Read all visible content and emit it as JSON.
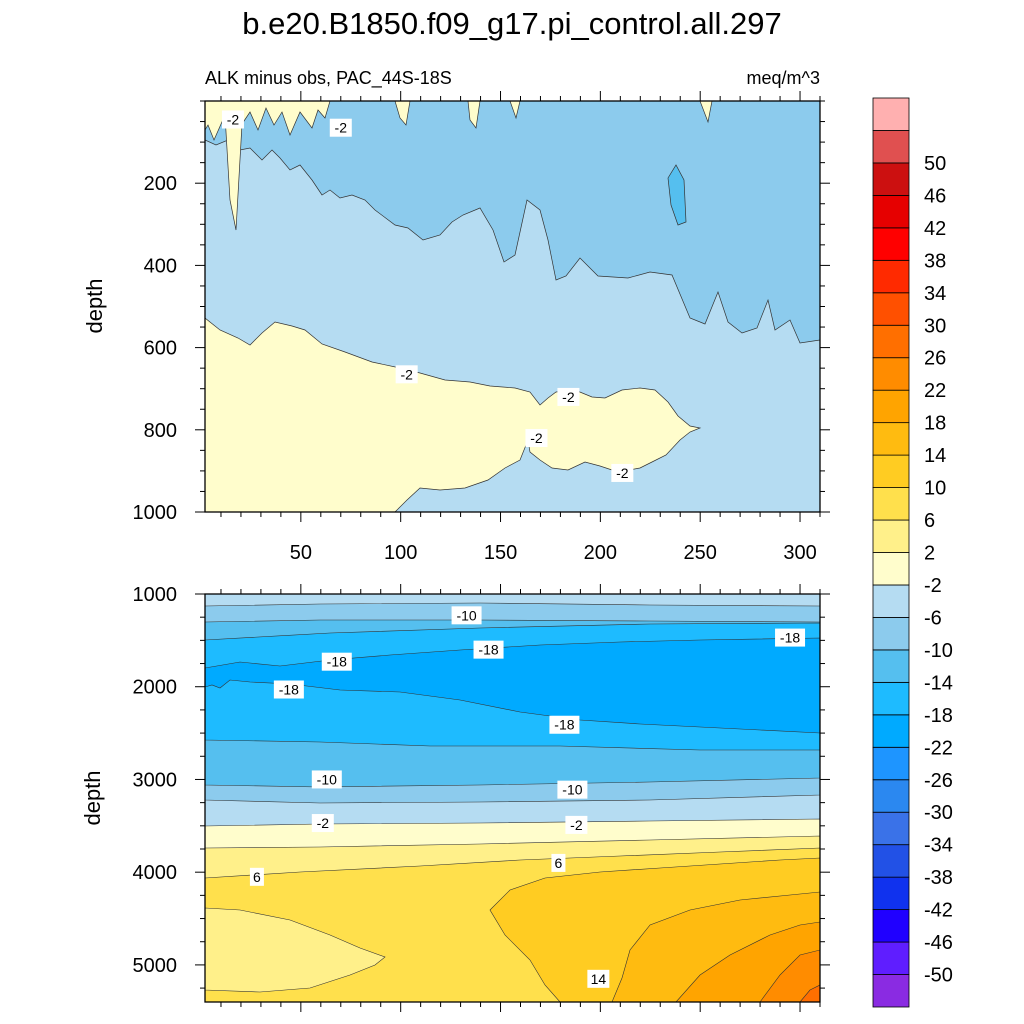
{
  "title": "b.e20.B1850.f09_g17.pi_control.all.297",
  "subtitle_left": "ALK minus obs, PAC_44S-18S",
  "subtitle_right": "meq/m^3",
  "ylabel": "depth",
  "colorbar": {
    "colors": [
      "#8a2be2",
      "#5f1eff",
      "#2000ff",
      "#1032ee",
      "#2251e6",
      "#3a72e8",
      "#2b88f0",
      "#1e95ff",
      "#00aaff",
      "#1ebbff",
      "#55bfef",
      "#8ccbed",
      "#b5dcf2",
      "#fffdcc",
      "#fff08a",
      "#ffe04c",
      "#ffcc22",
      "#ffbb10",
      "#ffa400",
      "#ff8c00",
      "#ff6f00",
      "#ff5000",
      "#ff2a00",
      "#ff0000",
      "#e60000",
      "#cc1010",
      "#e05050",
      "#ffb0b0"
    ],
    "labels": [
      "-50",
      "-46",
      "-42",
      "-38",
      "-34",
      "-30",
      "-26",
      "-22",
      "-18",
      "-14",
      "-10",
      "-6",
      "-2",
      "2",
      "6",
      "10",
      "14",
      "18",
      "22",
      "26",
      "30",
      "34",
      "38",
      "42",
      "46",
      "50"
    ]
  },
  "chart_data": [
    {
      "type": "contour",
      "panel": "upper",
      "variable": "ALK minus obs",
      "units": "meq/m^3",
      "x_ticks": [
        50,
        100,
        150,
        200,
        250,
        300
      ],
      "x_tick_labels": [
        "50",
        "100",
        "150",
        "200",
        "250",
        "300"
      ],
      "xlim": [
        2,
        310
      ],
      "ylim": [
        0,
        1000
      ],
      "y_ticks": [
        200,
        400,
        600,
        800,
        1000
      ],
      "y_tick_labels": [
        "200",
        "400",
        "600",
        "800",
        "1000"
      ],
      "ylabel": "depth",
      "contour_labels": [
        {
          "text": "-2",
          "x": 16,
          "depth": 45
        },
        {
          "text": "-2",
          "x": 70,
          "depth": 65
        },
        {
          "text": "-2",
          "x": 103,
          "depth": 665
        },
        {
          "text": "-2",
          "x": 184,
          "depth": 720
        },
        {
          "text": "-2",
          "x": 168,
          "depth": 820
        },
        {
          "text": "-2",
          "x": 211,
          "depth": 905
        }
      ]
    },
    {
      "type": "contour",
      "panel": "lower",
      "variable": "ALK minus obs",
      "units": "meq/m^3",
      "xlim": [
        2,
        310
      ],
      "ylim": [
        1000,
        5400
      ],
      "y_ticks": [
        1000,
        2000,
        3000,
        4000,
        5000
      ],
      "y_tick_labels": [
        "1000",
        "2000",
        "3000",
        "4000",
        "5000"
      ],
      "ylabel": "depth",
      "contour_labels": [
        {
          "text": "-10",
          "x": 133,
          "depth": 1230
        },
        {
          "text": "-18",
          "x": 295,
          "depth": 1470
        },
        {
          "text": "-18",
          "x": 144,
          "depth": 1600
        },
        {
          "text": "-18",
          "x": 68,
          "depth": 1730
        },
        {
          "text": "-18",
          "x": 44,
          "depth": 2030
        },
        {
          "text": "-18",
          "x": 182,
          "depth": 2410
        },
        {
          "text": "-10",
          "x": 63,
          "depth": 3000
        },
        {
          "text": "-10",
          "x": 186,
          "depth": 3110
        },
        {
          "text": "-2",
          "x": 61,
          "depth": 3470
        },
        {
          "text": "-2",
          "x": 188,
          "depth": 3490
        },
        {
          "text": "6",
          "x": 179,
          "depth": 3900
        },
        {
          "text": "6",
          "x": 28,
          "depth": 4050
        },
        {
          "text": "14",
          "x": 199,
          "depth": 5150
        }
      ]
    }
  ]
}
